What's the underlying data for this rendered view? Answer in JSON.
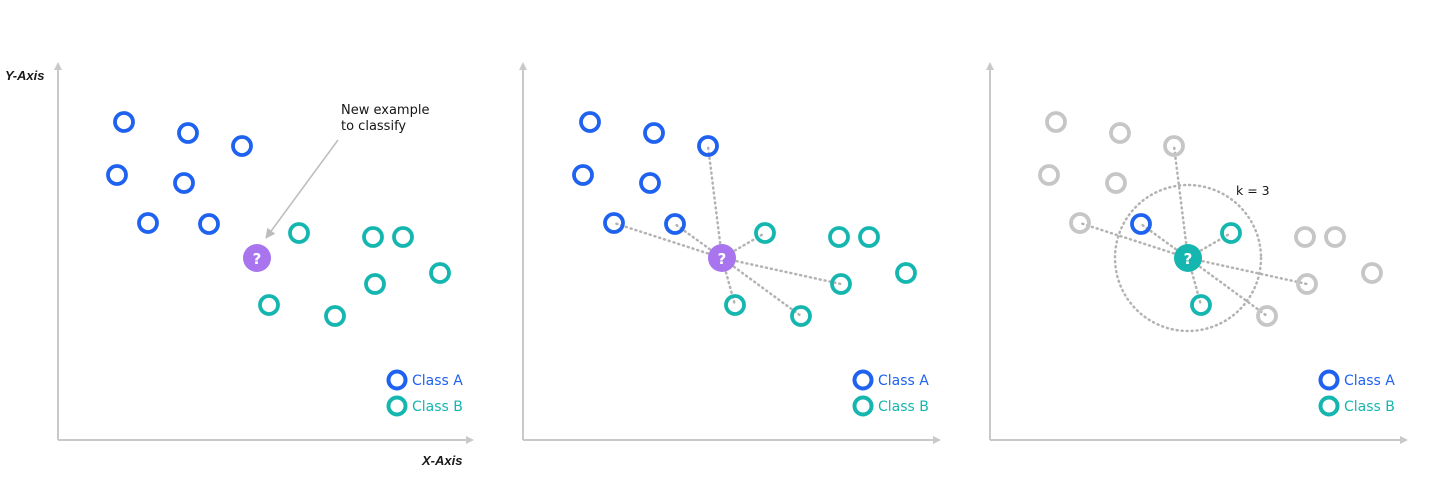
{
  "axes": {
    "x_label": "X-Axis",
    "y_label": "Y-Axis"
  },
  "annotation": {
    "line1": "New example",
    "line2": "to classify"
  },
  "k_label": "k = 3",
  "query_symbol": "?",
  "legend": {
    "class_a": "Class A",
    "class_b": "Class B"
  },
  "colors": {
    "class_a": "#1f62f0",
    "class_b": "#16b6b0",
    "query_unknown": "#a875ef",
    "faded": "#c6c6c6",
    "axis": "#c9c9c9",
    "dotted": "#b3b3b3",
    "arrow": "#bdbdbd"
  },
  "points": {
    "class_a": [
      [
        1,
        1
      ],
      [
        2,
        2
      ],
      [
        3,
        3
      ],
      [
        4,
        4
      ],
      [
        5,
        5
      ],
      [
        6,
        6
      ],
      [
        7,
        7
      ]
    ],
    "class_b": [
      [
        1,
        1
      ],
      [
        2,
        2
      ],
      [
        3,
        3
      ],
      [
        4,
        4
      ],
      [
        5,
        5
      ],
      [
        6,
        6
      ],
      [
        7,
        7
      ],
      [
        8,
        8
      ]
    ]
  },
  "panel3_nearest": {
    "class_a_count": 1,
    "class_b_count": 2,
    "result": "Class B"
  }
}
